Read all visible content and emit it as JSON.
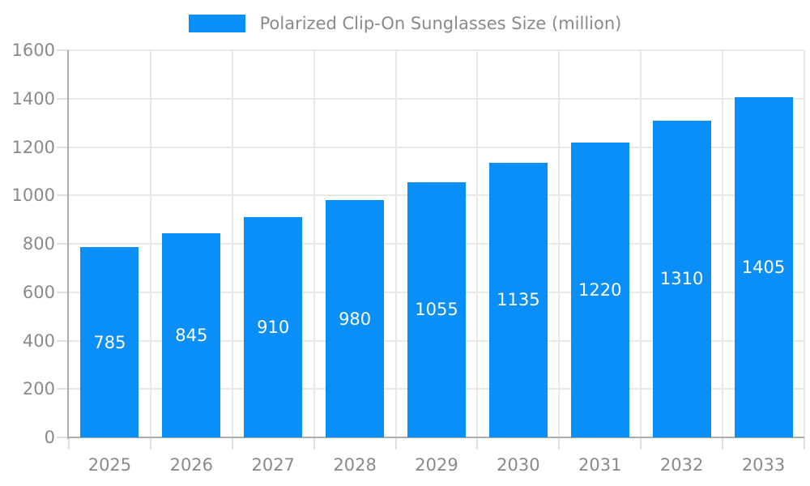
{
  "legend": {
    "label": "Polarized Clip-On Sunglasses Size (million)"
  },
  "chart_data": {
    "type": "bar",
    "title": "Polarized Clip-On Sunglasses Size (million)",
    "categories": [
      "2025",
      "2026",
      "2027",
      "2028",
      "2029",
      "2030",
      "2031",
      "2032",
      "2033"
    ],
    "values": [
      785,
      845,
      910,
      980,
      1055,
      1135,
      1220,
      1310,
      1405
    ],
    "xlabel": "",
    "ylabel": "",
    "ylim": [
      0,
      1600
    ],
    "yticks": [
      0,
      200,
      400,
      600,
      800,
      1000,
      1200,
      1400,
      1600
    ],
    "grid": true,
    "legend_position": "top-center",
    "colors": {
      "bar": "#0A8FF8",
      "value_label": "#ffffff",
      "axis_line": "#adadad",
      "gridline": "#e9e9e9",
      "tick": "#e0e0e0",
      "text": "#8a8a8a",
      "background": "#ffffff"
    }
  }
}
